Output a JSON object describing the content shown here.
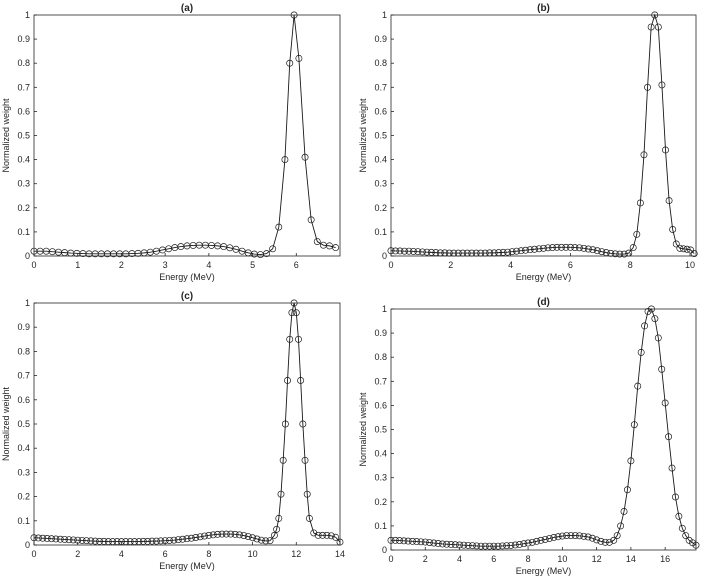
{
  "chart_data": [
    {
      "type": "line",
      "title": "(a)",
      "xlabel": "Energy (MeV)",
      "ylabel": "Normalized weight",
      "xlim": [
        0,
        7
      ],
      "ylim": [
        0,
        1
      ],
      "xticks": [
        "0",
        "1",
        "2",
        "3",
        "4",
        "5",
        "6"
      ],
      "yticks": [
        "0",
        "0.1",
        "0.2",
        "0.3",
        "0.4",
        "0.5",
        "0.6",
        "0.7",
        "0.8",
        "0.9",
        "1"
      ],
      "grid": false,
      "marker": "circle",
      "series": [
        {
          "x": [
            0,
            0.14,
            0.28,
            0.42,
            0.56,
            0.7,
            0.84,
            0.98,
            1.12,
            1.26,
            1.4,
            1.54,
            1.68,
            1.82,
            1.96,
            2.1,
            2.24,
            2.38,
            2.52,
            2.66,
            2.8,
            2.94,
            3.08,
            3.22,
            3.36,
            3.5,
            3.64,
            3.78,
            3.92,
            4.06,
            4.2,
            4.34,
            4.48,
            4.62,
            4.76,
            4.9,
            5.04,
            5.18,
            5.32,
            5.46,
            5.6,
            5.74,
            5.85,
            5.95,
            6.06,
            6.2,
            6.34,
            6.48,
            6.62,
            6.76,
            6.9
          ],
          "y": [
            0.02,
            0.02,
            0.02,
            0.018,
            0.016,
            0.014,
            0.012,
            0.011,
            0.01,
            0.009,
            0.009,
            0.009,
            0.009,
            0.009,
            0.009,
            0.009,
            0.01,
            0.011,
            0.013,
            0.016,
            0.02,
            0.025,
            0.03,
            0.035,
            0.039,
            0.042,
            0.044,
            0.045,
            0.045,
            0.044,
            0.042,
            0.039,
            0.034,
            0.028,
            0.02,
            0.013,
            0.008,
            0.006,
            0.01,
            0.03,
            0.12,
            0.4,
            0.8,
            1.0,
            0.82,
            0.41,
            0.15,
            0.06,
            0.045,
            0.042,
            0.035
          ]
        }
      ]
    },
    {
      "type": "line",
      "title": "(b)",
      "xlabel": "Energy (MeV)",
      "ylabel": "Normalized weight",
      "xlim": [
        0,
        10.2
      ],
      "ylim": [
        0,
        1
      ],
      "xticks": [
        "0",
        "2",
        "4",
        "6",
        "8",
        "10"
      ],
      "yticks": [
        "0",
        "0.1",
        "0.2",
        "0.3",
        "0.4",
        "0.5",
        "0.6",
        "0.7",
        "0.8",
        "0.9",
        "1"
      ],
      "grid": false,
      "marker": "circle",
      "series": [
        {
          "x": [
            0,
            0.15,
            0.3,
            0.45,
            0.6,
            0.75,
            0.9,
            1.05,
            1.2,
            1.35,
            1.5,
            1.65,
            1.8,
            1.95,
            2.1,
            2.25,
            2.4,
            2.55,
            2.7,
            2.85,
            3.0,
            3.15,
            3.3,
            3.45,
            3.6,
            3.75,
            3.9,
            4.05,
            4.2,
            4.35,
            4.5,
            4.65,
            4.8,
            4.95,
            5.1,
            5.25,
            5.4,
            5.55,
            5.7,
            5.85,
            6.0,
            6.15,
            6.3,
            6.45,
            6.6,
            6.75,
            6.9,
            7.05,
            7.2,
            7.35,
            7.5,
            7.65,
            7.8,
            7.95,
            8.1,
            8.22,
            8.34,
            8.46,
            8.58,
            8.7,
            8.82,
            8.94,
            9.06,
            9.18,
            9.3,
            9.42,
            9.54,
            9.66,
            9.78,
            9.9,
            10.02,
            10.14
          ],
          "y": [
            0.022,
            0.021,
            0.021,
            0.02,
            0.02,
            0.019,
            0.018,
            0.017,
            0.016,
            0.015,
            0.014,
            0.013,
            0.013,
            0.012,
            0.012,
            0.012,
            0.012,
            0.012,
            0.012,
            0.012,
            0.012,
            0.012,
            0.013,
            0.013,
            0.014,
            0.015,
            0.016,
            0.018,
            0.02,
            0.022,
            0.024,
            0.026,
            0.028,
            0.03,
            0.032,
            0.034,
            0.035,
            0.036,
            0.036,
            0.036,
            0.036,
            0.035,
            0.034,
            0.032,
            0.029,
            0.026,
            0.022,
            0.018,
            0.014,
            0.011,
            0.009,
            0.008,
            0.008,
            0.012,
            0.035,
            0.09,
            0.22,
            0.42,
            0.7,
            0.95,
            1.0,
            0.95,
            0.71,
            0.44,
            0.23,
            0.11,
            0.05,
            0.032,
            0.03,
            0.028,
            0.025,
            0.01
          ]
        }
      ]
    },
    {
      "type": "line",
      "title": "(c)",
      "xlabel": "Energy (MeV)",
      "ylabel": "Normalized weight",
      "xlim": [
        0,
        14
      ],
      "ylim": [
        0,
        1
      ],
      "xticks": [
        "0",
        "2",
        "4",
        "6",
        "8",
        "10",
        "12",
        "14"
      ],
      "yticks": [
        "0",
        "0.1",
        "0.2",
        "0.3",
        "0.4",
        "0.5",
        "0.6",
        "0.7",
        "0.8",
        "0.9",
        "1"
      ],
      "grid": false,
      "marker": "circle",
      "series": [
        {
          "x": [
            0,
            0.2,
            0.4,
            0.6,
            0.8,
            1.0,
            1.2,
            1.4,
            1.6,
            1.8,
            2.0,
            2.2,
            2.4,
            2.6,
            2.8,
            3.0,
            3.2,
            3.4,
            3.6,
            3.8,
            4.0,
            4.2,
            4.4,
            4.6,
            4.8,
            5.0,
            5.2,
            5.4,
            5.6,
            5.8,
            6.0,
            6.2,
            6.4,
            6.6,
            6.8,
            7.0,
            7.2,
            7.4,
            7.6,
            7.8,
            8.0,
            8.2,
            8.4,
            8.6,
            8.8,
            9.0,
            9.2,
            9.4,
            9.6,
            9.8,
            10.0,
            10.2,
            10.4,
            10.6,
            10.8,
            11.0,
            11.1,
            11.2,
            11.3,
            11.4,
            11.5,
            11.6,
            11.7,
            11.8,
            11.9,
            12.0,
            12.1,
            12.2,
            12.3,
            12.4,
            12.5,
            12.6,
            12.8,
            13.0,
            13.2,
            13.4,
            13.6,
            13.8,
            14.0
          ],
          "y": [
            0.03,
            0.029,
            0.028,
            0.027,
            0.026,
            0.025,
            0.024,
            0.023,
            0.022,
            0.021,
            0.02,
            0.019,
            0.018,
            0.017,
            0.016,
            0.015,
            0.015,
            0.014,
            0.014,
            0.014,
            0.014,
            0.014,
            0.014,
            0.014,
            0.014,
            0.015,
            0.015,
            0.016,
            0.016,
            0.017,
            0.018,
            0.019,
            0.02,
            0.022,
            0.024,
            0.026,
            0.028,
            0.031,
            0.034,
            0.037,
            0.04,
            0.042,
            0.044,
            0.045,
            0.045,
            0.045,
            0.044,
            0.042,
            0.039,
            0.035,
            0.03,
            0.025,
            0.02,
            0.017,
            0.018,
            0.04,
            0.065,
            0.11,
            0.21,
            0.35,
            0.5,
            0.68,
            0.85,
            0.96,
            1.0,
            0.96,
            0.85,
            0.68,
            0.5,
            0.35,
            0.21,
            0.11,
            0.05,
            0.04,
            0.04,
            0.04,
            0.038,
            0.032,
            0.012
          ]
        }
      ]
    },
    {
      "type": "line",
      "title": "(d)",
      "xlabel": "Energy (MeV)",
      "ylabel": "Normalized weight",
      "xlim": [
        0,
        17.8
      ],
      "ylim": [
        0,
        1
      ],
      "xticks": [
        "0",
        "2",
        "4",
        "6",
        "8",
        "10",
        "12",
        "14",
        "16"
      ],
      "yticks": [
        "0",
        "0.1",
        "0.2",
        "0.3",
        "0.4",
        "0.5",
        "0.6",
        "0.7",
        "0.8",
        "0.9",
        "1"
      ],
      "grid": false,
      "marker": "circle",
      "series": [
        {
          "x": [
            0,
            0.25,
            0.5,
            0.75,
            1.0,
            1.25,
            1.5,
            1.75,
            2.0,
            2.25,
            2.5,
            2.75,
            3.0,
            3.25,
            3.5,
            3.75,
            4.0,
            4.25,
            4.5,
            4.75,
            5.0,
            5.25,
            5.5,
            5.75,
            6.0,
            6.25,
            6.5,
            6.75,
            7.0,
            7.25,
            7.5,
            7.75,
            8.0,
            8.25,
            8.5,
            8.75,
            9.0,
            9.25,
            9.5,
            9.75,
            10.0,
            10.25,
            10.5,
            10.75,
            11.0,
            11.25,
            11.5,
            11.75,
            12.0,
            12.25,
            12.5,
            12.75,
            13.0,
            13.2,
            13.4,
            13.6,
            13.8,
            14.0,
            14.2,
            14.4,
            14.6,
            14.8,
            15.0,
            15.2,
            15.4,
            15.6,
            15.8,
            16.0,
            16.2,
            16.4,
            16.6,
            16.8,
            17.0,
            17.2,
            17.4,
            17.6,
            17.8
          ],
          "y": [
            0.04,
            0.04,
            0.039,
            0.038,
            0.037,
            0.036,
            0.035,
            0.034,
            0.033,
            0.031,
            0.029,
            0.027,
            0.025,
            0.024,
            0.023,
            0.022,
            0.021,
            0.02,
            0.019,
            0.018,
            0.017,
            0.016,
            0.016,
            0.016,
            0.016,
            0.016,
            0.017,
            0.018,
            0.019,
            0.021,
            0.023,
            0.026,
            0.029,
            0.032,
            0.036,
            0.04,
            0.044,
            0.048,
            0.052,
            0.055,
            0.058,
            0.06,
            0.06,
            0.06,
            0.059,
            0.057,
            0.054,
            0.049,
            0.042,
            0.036,
            0.032,
            0.032,
            0.04,
            0.06,
            0.1,
            0.16,
            0.25,
            0.37,
            0.52,
            0.68,
            0.82,
            0.93,
            0.99,
            1.0,
            0.96,
            0.88,
            0.75,
            0.61,
            0.47,
            0.34,
            0.22,
            0.14,
            0.09,
            0.06,
            0.04,
            0.03,
            0.02
          ]
        }
      ]
    }
  ]
}
